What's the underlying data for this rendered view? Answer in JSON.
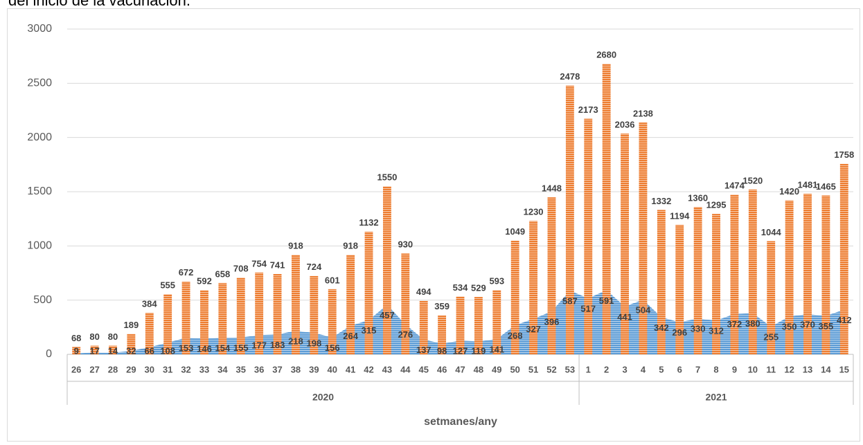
{
  "chart_data": {
    "type": "bar-area",
    "caption": "del inicio de la vacunación.",
    "x_label": "setmanes/any",
    "categories": [
      "26",
      "27",
      "28",
      "29",
      "30",
      "31",
      "32",
      "33",
      "34",
      "35",
      "36",
      "37",
      "38",
      "39",
      "40",
      "41",
      "42",
      "43",
      "44",
      "45",
      "46",
      "47",
      "48",
      "49",
      "50",
      "51",
      "52",
      "53",
      "1",
      "2",
      "3",
      "4",
      "5",
      "6",
      "7",
      "8",
      "9",
      "10",
      "11",
      "12",
      "13",
      "14",
      "15"
    ],
    "groups": [
      "2020",
      "2021"
    ],
    "series": [
      {
        "type": "bar",
        "color": "#ed7d31",
        "values": [
          68,
          80,
          80,
          189,
          384,
          555,
          672,
          592,
          658,
          708,
          754,
          741,
          918,
          724,
          601,
          918,
          1132,
          1550,
          930,
          494,
          359,
          534,
          529,
          593,
          1049,
          1230,
          1448,
          2478,
          2173,
          2680,
          2036,
          2138,
          1332,
          1194,
          1360,
          1295,
          1474,
          1520,
          1044,
          1420,
          1481,
          1465,
          1758
        ]
      },
      {
        "type": "area",
        "color": "#5b9bd5",
        "values": [
          9,
          17,
          14,
          32,
          66,
          108,
          153,
          146,
          154,
          155,
          177,
          183,
          218,
          198,
          156,
          264,
          315,
          457,
          276,
          137,
          98,
          127,
          119,
          141,
          268,
          327,
          396,
          587,
          517,
          591,
          441,
          504,
          342,
          296,
          330,
          312,
          372,
          380,
          255,
          350,
          370,
          355,
          412
        ]
      }
    ],
    "ylim": [
      0,
      3000
    ],
    "yticks": [
      0,
      500,
      1000,
      1500,
      2000,
      2500,
      3000
    ],
    "grid": true
  }
}
